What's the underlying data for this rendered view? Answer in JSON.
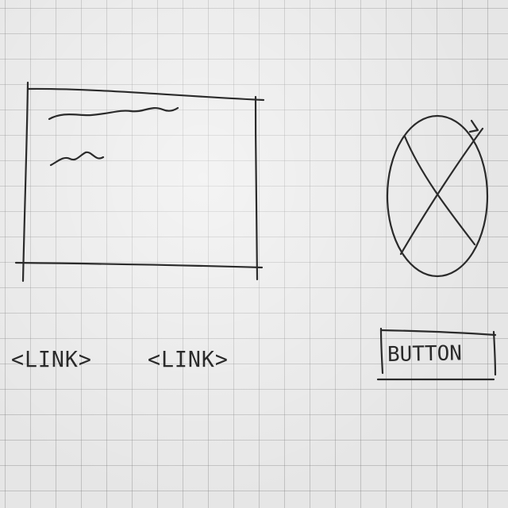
{
  "links": [
    {
      "label": "<LINK>"
    },
    {
      "label": "<LINK>"
    }
  ],
  "button": {
    "label": "BUTTON"
  },
  "colors": {
    "ink": "#2b2b2b",
    "paper": "#e6e6e6",
    "grid": "#8a8a8a"
  },
  "icons": {
    "image_placeholder": "image-placeholder-icon",
    "text_lines": "squiggle-text-icon"
  }
}
